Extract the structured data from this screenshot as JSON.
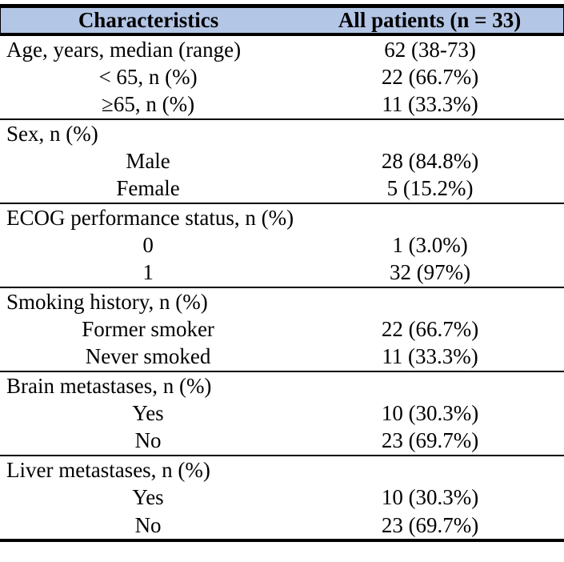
{
  "colors": {
    "header_bg": "#b4c6e6",
    "border": "#000000"
  },
  "table": {
    "columns": [
      "Characteristics",
      "All patients (n = 33)"
    ],
    "sections": [
      {
        "name": "age",
        "rows": [
          {
            "label": "Age, years, median (range)",
            "value": "62 (38-73)"
          },
          {
            "label": "< 65, n (%)",
            "value": "22 (66.7%)"
          },
          {
            "label": "≥65, n (%)",
            "value": "11 (33.3%)"
          }
        ]
      },
      {
        "name": "sex",
        "rows": [
          {
            "label": "Sex, n (%)",
            "value": ""
          },
          {
            "label": "Male",
            "value": "28 (84.8%)"
          },
          {
            "label": "Female",
            "value": "5 (15.2%)"
          }
        ]
      },
      {
        "name": "ecog",
        "rows": [
          {
            "label": "ECOG performance status, n (%)",
            "value": ""
          },
          {
            "label": "0",
            "value": "1 (3.0%)"
          },
          {
            "label": "1",
            "value": "32 (97%)"
          }
        ]
      },
      {
        "name": "smoking",
        "rows": [
          {
            "label": "Smoking history, n (%)",
            "value": ""
          },
          {
            "label": "Former smoker",
            "value": "22 (66.7%)"
          },
          {
            "label": "Never smoked",
            "value": "11 (33.3%)"
          }
        ]
      },
      {
        "name": "brain-metastases",
        "rows": [
          {
            "label": "Brain metastases, n (%)",
            "value": ""
          },
          {
            "label": "Yes",
            "value": "10 (30.3%)"
          },
          {
            "label": "No",
            "value": "23 (69.7%)"
          }
        ]
      },
      {
        "name": "liver-metastases",
        "rows": [
          {
            "label": "Liver metastases, n (%)",
            "value": ""
          },
          {
            "label": "Yes",
            "value": "10 (30.3%)"
          },
          {
            "label": "No",
            "value": "23 (69.7%)"
          }
        ]
      }
    ]
  }
}
